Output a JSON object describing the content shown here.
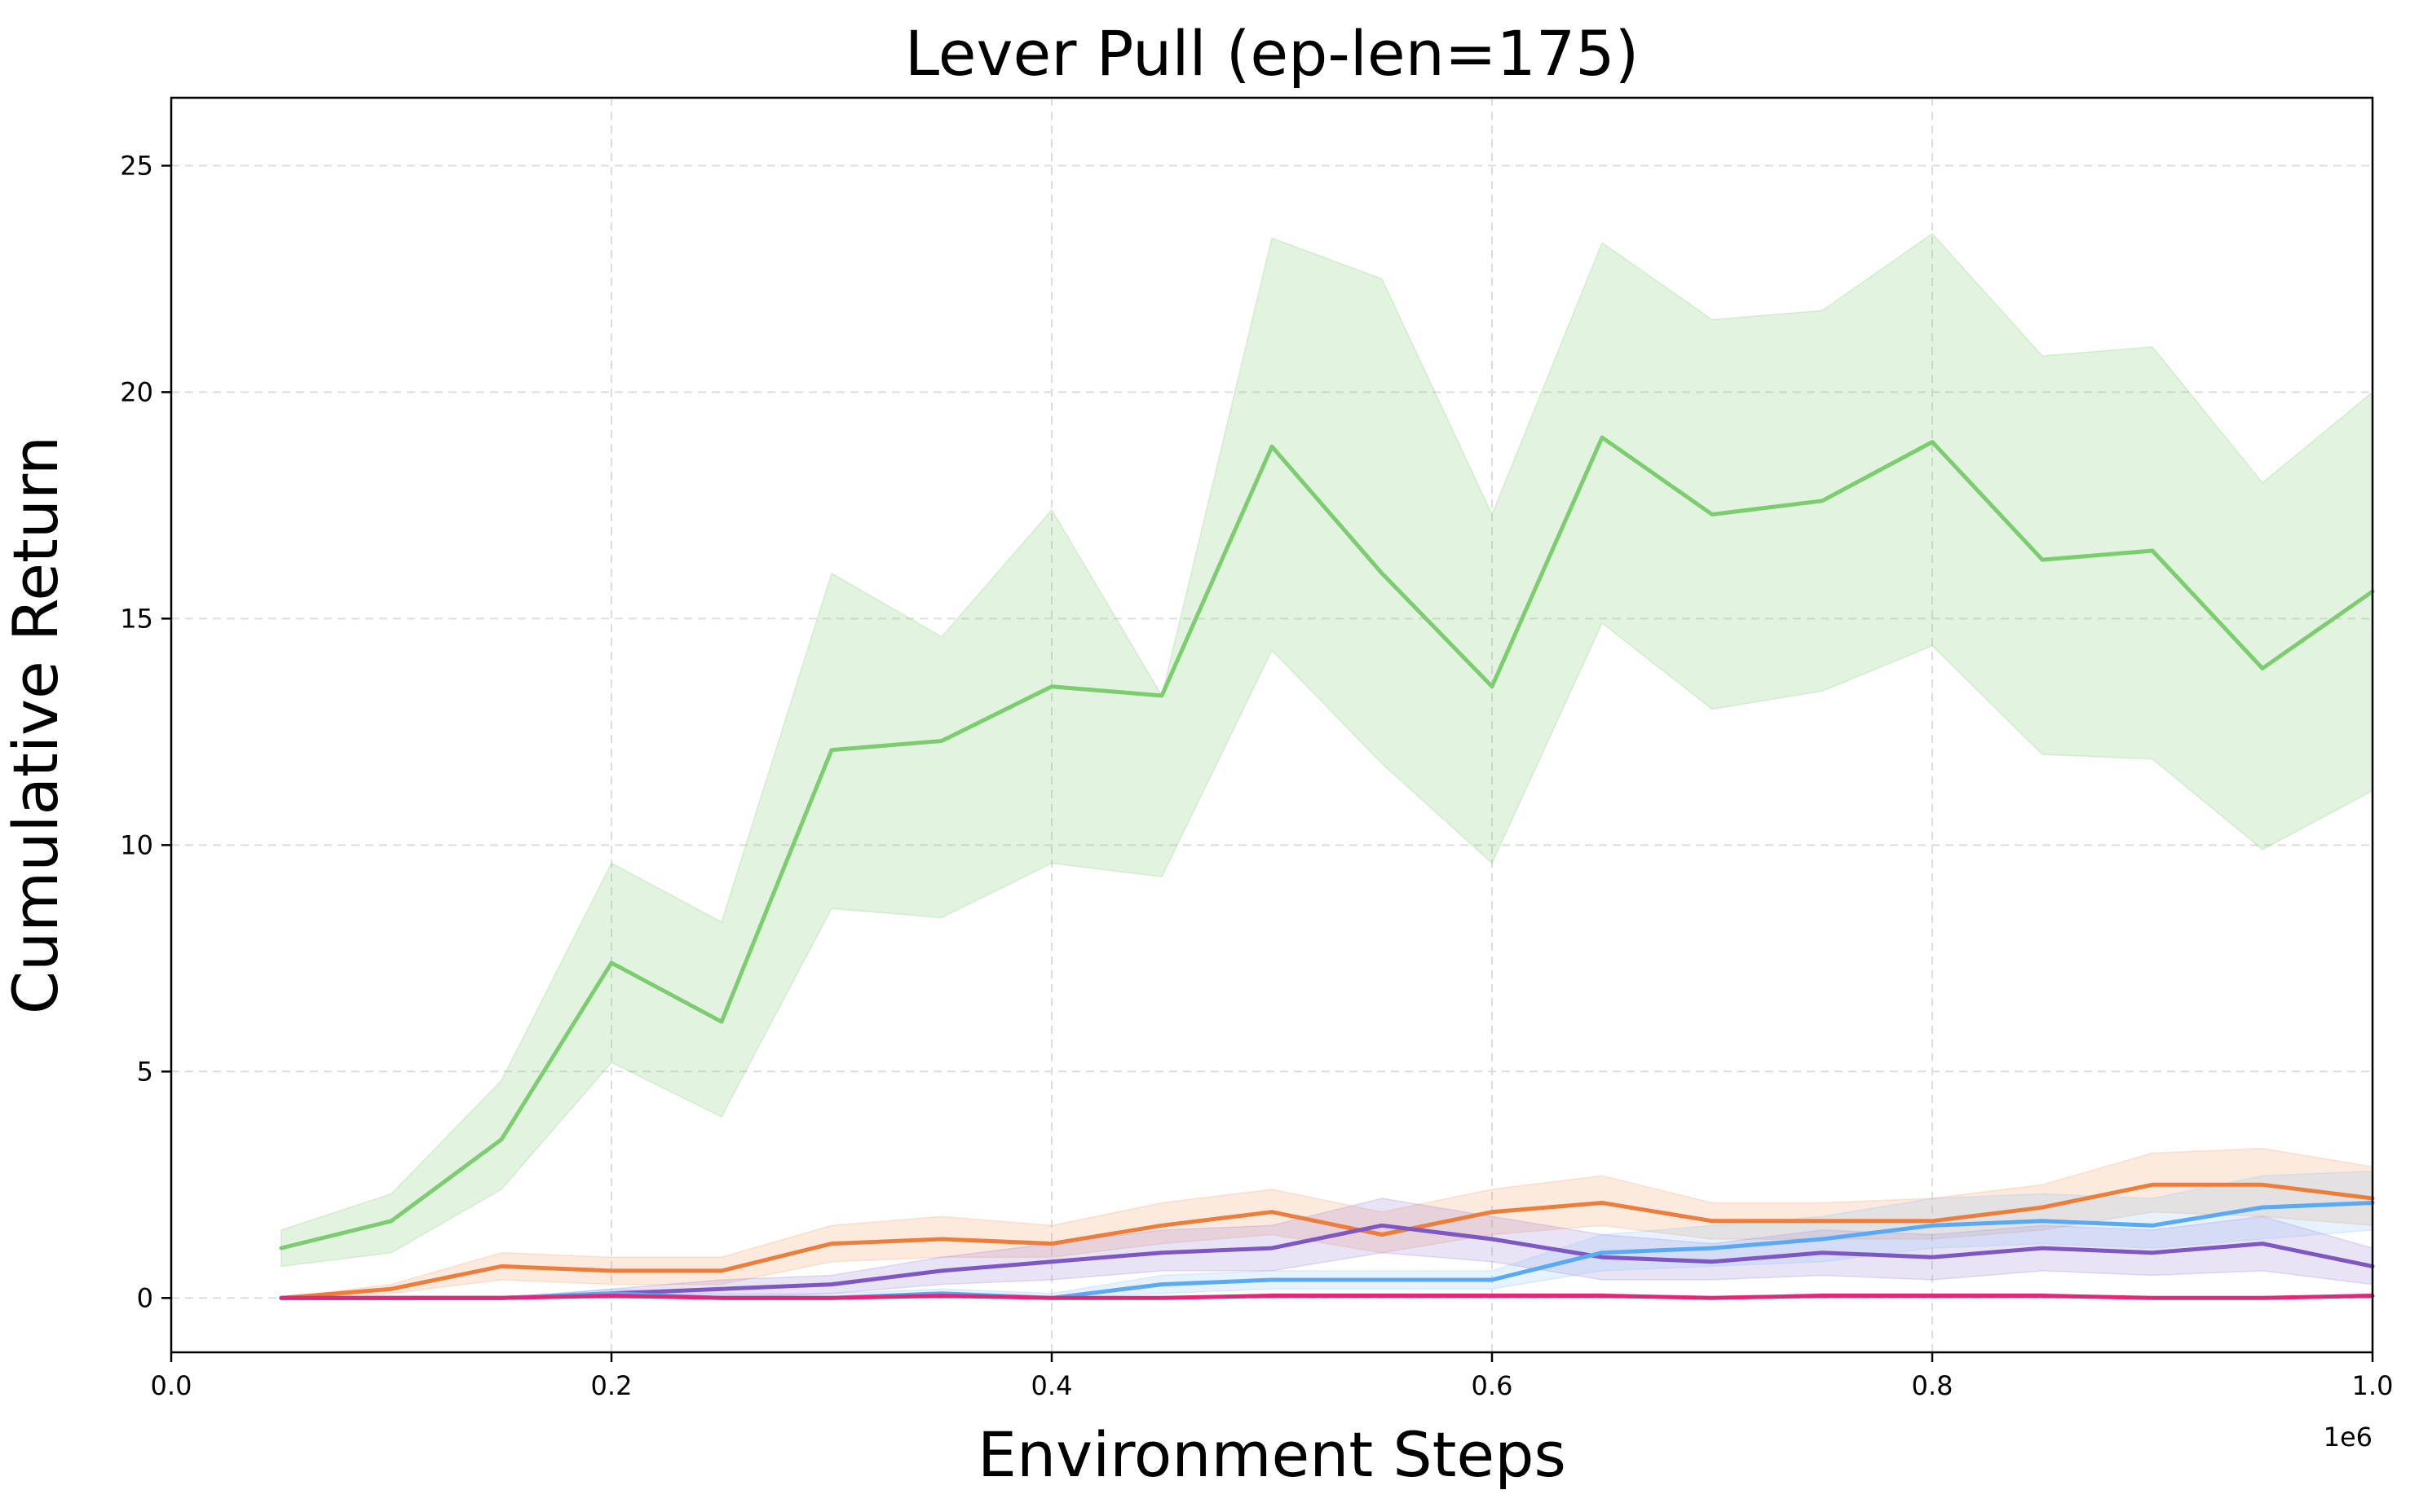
{
  "chart_data": {
    "type": "line",
    "title": "Lever Pull (ep-len=175)",
    "xlabel": "Environment Steps",
    "ylabel": "Cumulative Return",
    "x_offset_label": "1e6",
    "xlim": [
      0.0,
      1.0
    ],
    "ylim": [
      -1.2,
      26.5
    ],
    "x_ticks": [
      0.0,
      0.2,
      0.4,
      0.6,
      0.8,
      1.0
    ],
    "x_tick_labels": [
      "0.0",
      "0.2",
      "0.4",
      "0.6",
      "0.8",
      "1.0"
    ],
    "y_ticks": [
      0,
      5,
      10,
      15,
      20,
      25
    ],
    "y_tick_labels": [
      "0",
      "5",
      "10",
      "15",
      "20",
      "25"
    ],
    "grid": true,
    "legend": "none",
    "series": [
      {
        "color": "#7ccd6f",
        "band_color": "#7ccd6f",
        "x": [
          0.05,
          0.1,
          0.15,
          0.2,
          0.25,
          0.3,
          0.35,
          0.4,
          0.45,
          0.5,
          0.55,
          0.6,
          0.65,
          0.7,
          0.75,
          0.8,
          0.85,
          0.9,
          0.95,
          1.0
        ],
        "values": [
          1.1,
          1.7,
          3.5,
          7.4,
          6.1,
          12.1,
          12.3,
          13.5,
          13.3,
          18.8,
          16.0,
          13.5,
          19.0,
          17.3,
          17.6,
          18.9,
          16.3,
          16.5,
          13.9,
          15.6
        ],
        "lower": [
          0.7,
          1.0,
          2.4,
          5.2,
          4.0,
          8.6,
          8.4,
          9.6,
          9.3,
          14.3,
          11.8,
          9.6,
          14.9,
          13.0,
          13.4,
          14.4,
          12.0,
          11.9,
          9.9,
          11.2
        ],
        "upper": [
          1.5,
          2.3,
          4.8,
          9.6,
          8.3,
          16.0,
          14.6,
          17.4,
          13.3,
          23.4,
          22.5,
          17.3,
          23.3,
          21.6,
          21.8,
          23.5,
          20.8,
          21.0,
          18.0,
          20.0
        ]
      },
      {
        "color": "#ed7d3a",
        "band_color": "#f5a16b",
        "x": [
          0.05,
          0.1,
          0.15,
          0.2,
          0.25,
          0.3,
          0.35,
          0.4,
          0.45,
          0.5,
          0.55,
          0.6,
          0.65,
          0.7,
          0.75,
          0.8,
          0.85,
          0.9,
          0.95,
          1.0
        ],
        "values": [
          0.0,
          0.2,
          0.7,
          0.6,
          0.6,
          1.2,
          1.3,
          1.2,
          1.6,
          1.9,
          1.4,
          1.9,
          2.1,
          1.7,
          1.7,
          1.7,
          2.0,
          2.5,
          2.5,
          2.2
        ],
        "lower": [
          0.0,
          0.1,
          0.4,
          0.3,
          0.3,
          0.8,
          0.9,
          0.9,
          1.2,
          1.4,
          1.0,
          1.4,
          1.6,
          1.3,
          1.3,
          1.3,
          1.5,
          1.9,
          1.8,
          1.6
        ],
        "upper": [
          0.0,
          0.3,
          1.0,
          0.9,
          0.9,
          1.6,
          1.8,
          1.6,
          2.1,
          2.4,
          1.9,
          2.4,
          2.7,
          2.1,
          2.1,
          2.2,
          2.5,
          3.2,
          3.3,
          2.9
        ]
      },
      {
        "color": "#7e57c2",
        "band_color": "#9c7fd6",
        "x": [
          0.05,
          0.1,
          0.15,
          0.2,
          0.25,
          0.3,
          0.35,
          0.4,
          0.45,
          0.5,
          0.55,
          0.6,
          0.65,
          0.7,
          0.75,
          0.8,
          0.85,
          0.9,
          0.95,
          1.0
        ],
        "values": [
          0.0,
          0.0,
          0.0,
          0.1,
          0.2,
          0.3,
          0.6,
          0.8,
          1.0,
          1.1,
          1.6,
          1.3,
          0.9,
          0.8,
          1.0,
          0.9,
          1.1,
          1.0,
          1.2,
          0.7
        ],
        "lower": [
          0.0,
          0.0,
          0.0,
          0.0,
          0.0,
          0.1,
          0.3,
          0.4,
          0.6,
          0.6,
          1.0,
          0.8,
          0.4,
          0.4,
          0.5,
          0.4,
          0.6,
          0.5,
          0.6,
          0.3
        ],
        "upper": [
          0.0,
          0.0,
          0.0,
          0.2,
          0.4,
          0.5,
          0.9,
          1.2,
          1.5,
          1.6,
          2.2,
          1.8,
          1.4,
          1.2,
          1.5,
          1.4,
          1.6,
          1.5,
          1.8,
          1.1
        ]
      },
      {
        "color": "#5aa9f5",
        "band_color": "#8fc4f7",
        "x": [
          0.05,
          0.1,
          0.15,
          0.2,
          0.25,
          0.3,
          0.35,
          0.4,
          0.45,
          0.5,
          0.55,
          0.6,
          0.65,
          0.7,
          0.75,
          0.8,
          0.85,
          0.9,
          0.95,
          1.0
        ],
        "values": [
          0.0,
          0.0,
          0.0,
          0.1,
          0.0,
          0.0,
          0.1,
          0.0,
          0.3,
          0.4,
          0.4,
          0.4,
          1.0,
          1.1,
          1.3,
          1.6,
          1.7,
          1.6,
          2.0,
          2.1
        ],
        "lower": [
          0.0,
          0.0,
          0.0,
          0.0,
          0.0,
          0.0,
          0.0,
          0.0,
          0.1,
          0.2,
          0.2,
          0.2,
          0.6,
          0.7,
          0.8,
          1.1,
          1.2,
          1.1,
          1.3,
          1.5
        ],
        "upper": [
          0.0,
          0.0,
          0.0,
          0.2,
          0.1,
          0.1,
          0.2,
          0.1,
          0.5,
          0.6,
          0.6,
          0.6,
          1.4,
          1.6,
          1.8,
          2.2,
          2.3,
          2.2,
          2.7,
          2.8
        ]
      },
      {
        "color": "#e0287a",
        "band_color": "#f06ba5",
        "x": [
          0.05,
          0.1,
          0.15,
          0.2,
          0.25,
          0.3,
          0.35,
          0.4,
          0.45,
          0.5,
          0.55,
          0.6,
          0.65,
          0.7,
          0.75,
          0.8,
          0.85,
          0.9,
          0.95,
          1.0
        ],
        "values": [
          0.0,
          0.0,
          0.0,
          0.05,
          0.0,
          0.0,
          0.05,
          0.0,
          0.0,
          0.05,
          0.05,
          0.05,
          0.05,
          0.0,
          0.05,
          0.05,
          0.05,
          0.0,
          0.0,
          0.05
        ],
        "lower": [
          0.0,
          0.0,
          0.0,
          0.0,
          0.0,
          0.0,
          0.0,
          0.0,
          0.0,
          0.0,
          0.0,
          0.0,
          0.0,
          0.0,
          0.0,
          0.0,
          0.0,
          0.0,
          0.0,
          0.0
        ],
        "upper": [
          0.0,
          0.0,
          0.0,
          0.1,
          0.0,
          0.0,
          0.1,
          0.0,
          0.0,
          0.1,
          0.1,
          0.1,
          0.1,
          0.0,
          0.1,
          0.1,
          0.1,
          0.0,
          0.0,
          0.1
        ]
      }
    ]
  }
}
